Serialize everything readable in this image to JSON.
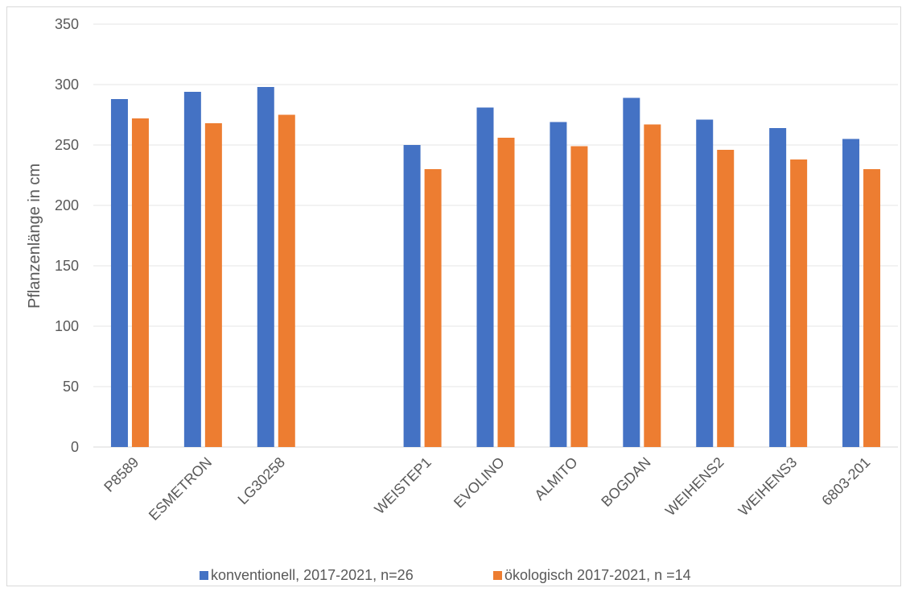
{
  "chart_data": {
    "type": "bar",
    "title": "",
    "xlabel": "",
    "ylabel": "Pflanzenlänge in cm",
    "ylim": [
      0,
      350
    ],
    "yticks": [
      0,
      50,
      100,
      150,
      200,
      250,
      300,
      350
    ],
    "grid": "horizontal",
    "legend_position": "bottom",
    "categories": [
      "P8589",
      "ESMETRON",
      "LG30258",
      "",
      "WEISTEP1",
      "EVOLINO",
      "ALMITO",
      "BOGDAN",
      "WEIHENS2",
      "WEIHENS3",
      "6803-201"
    ],
    "series": [
      {
        "name": "konventionell, 2017-2021, n=26",
        "color": "#4472C4",
        "values": [
          288,
          294,
          298,
          null,
          250,
          281,
          269,
          289,
          271,
          264,
          255
        ]
      },
      {
        "name": "ökologisch 2017-2021, n =14",
        "color": "#ED7D31",
        "values": [
          272,
          268,
          275,
          null,
          230,
          256,
          249,
          267,
          246,
          238,
          230
        ]
      }
    ]
  }
}
